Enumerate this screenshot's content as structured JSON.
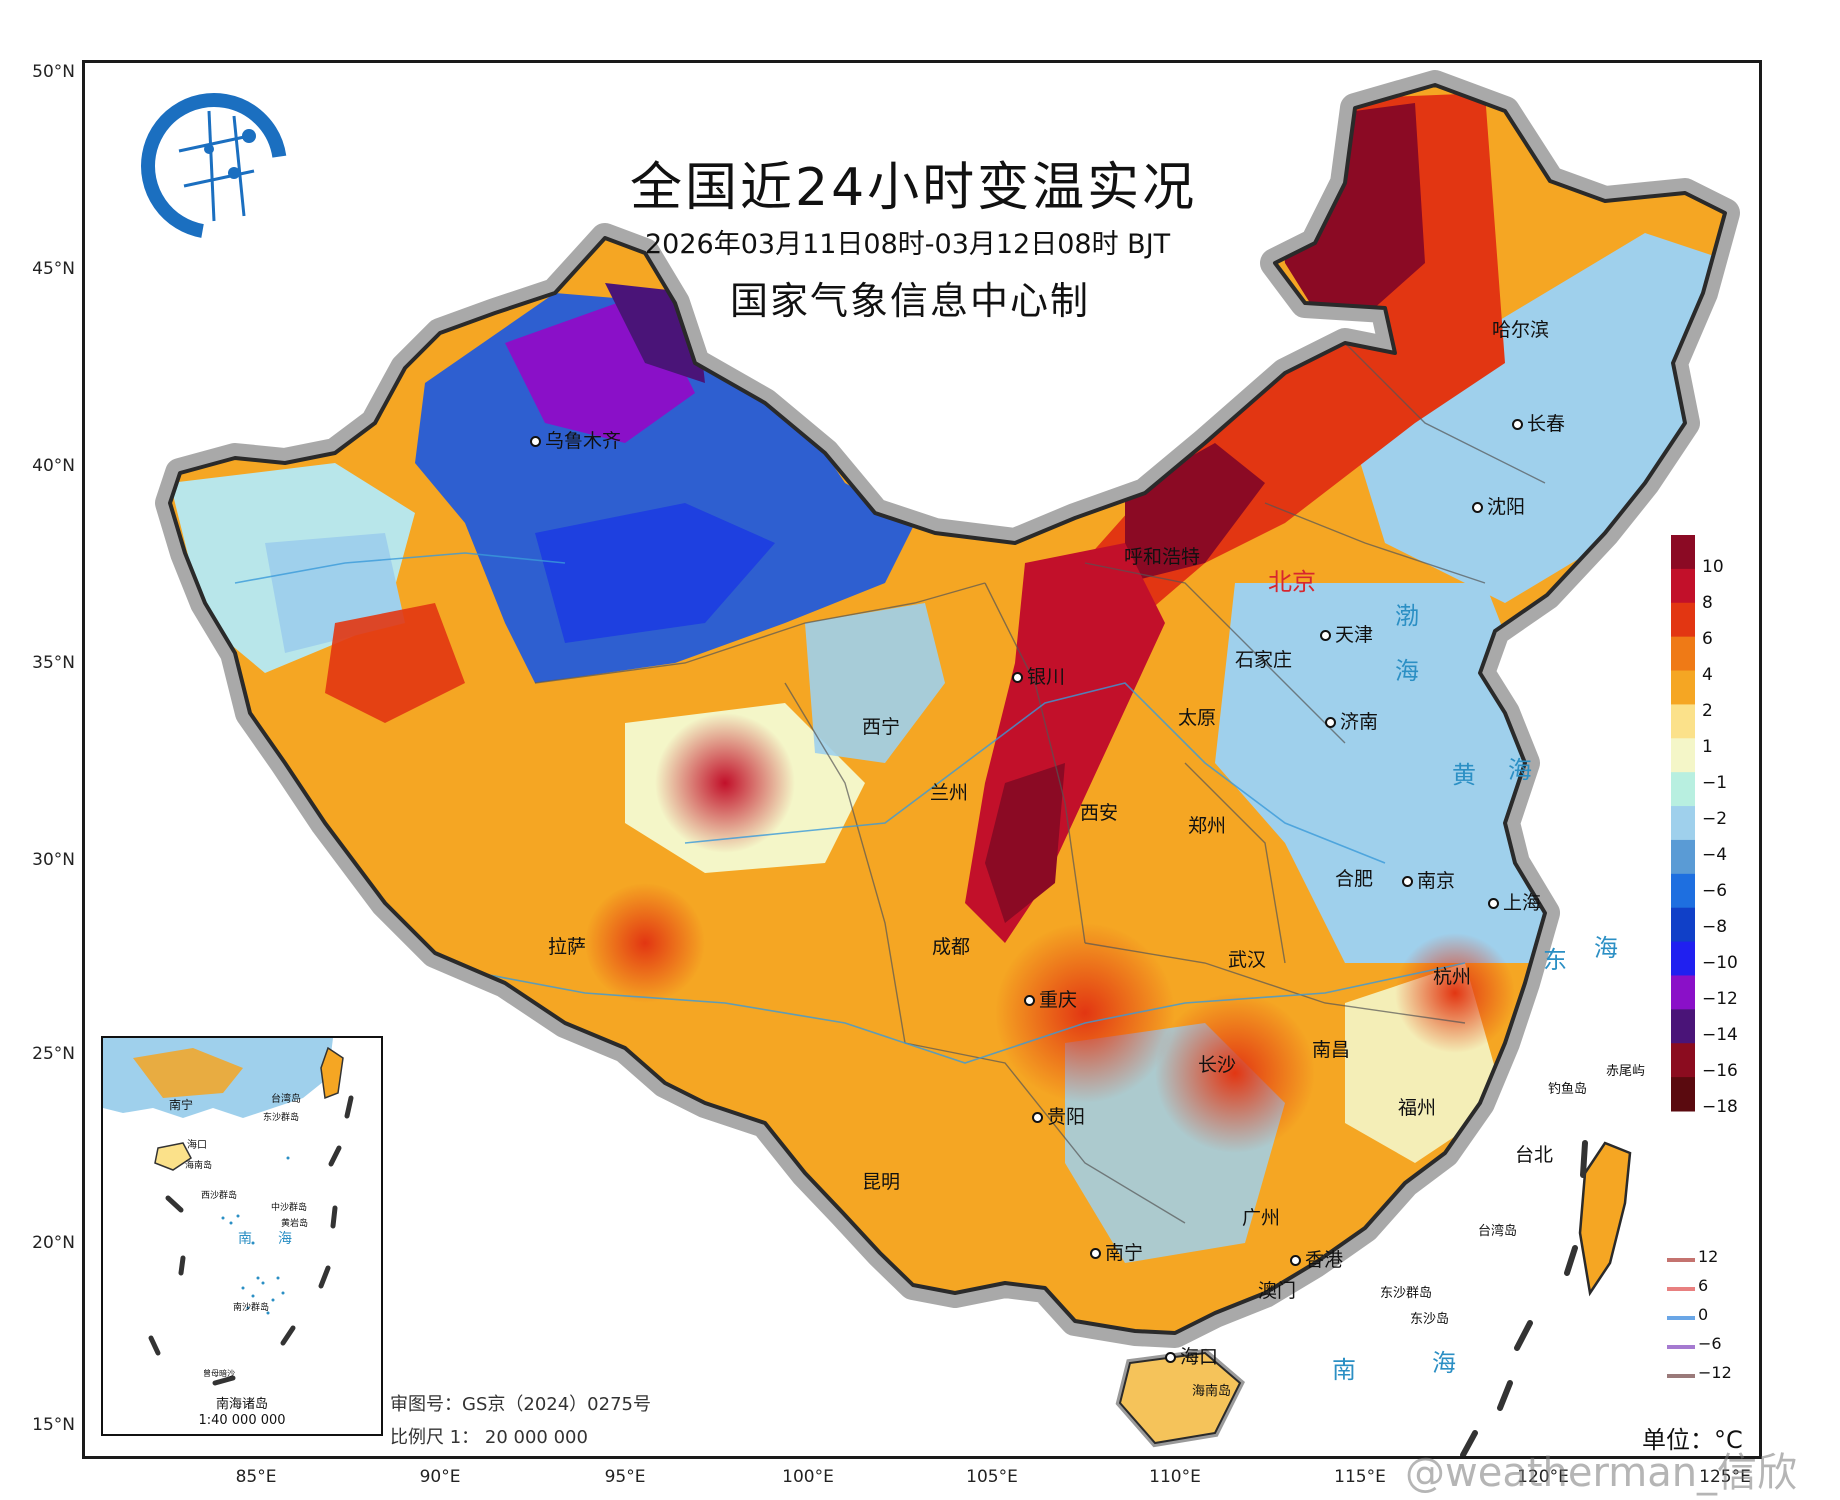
{
  "header": {
    "title": "全国近24小时变温实况",
    "subtitle": "2026年03月11日08时-03月12日08时 BJT",
    "issuer": "国家气象信息中心制"
  },
  "axes": {
    "lat_labels": [
      "50°N",
      "45°N",
      "40°N",
      "35°N",
      "30°N",
      "25°N",
      "20°N",
      "15°N"
    ],
    "lon_labels": [
      "85°E",
      "90°E",
      "95°E",
      "100°E",
      "105°E",
      "110°E",
      "115°E",
      "120°E",
      "125°E"
    ]
  },
  "cities": [
    "乌鲁木齐",
    "呼和浩特",
    "北京",
    "天津",
    "石家庄",
    "太原",
    "济南",
    "银川",
    "西宁",
    "兰州",
    "西安",
    "郑州",
    "合肥",
    "南京",
    "上海",
    "杭州",
    "武汉",
    "成都",
    "重庆",
    "拉萨",
    "长沙",
    "南昌",
    "福州",
    "贵阳",
    "昆明",
    "南宁",
    "广州",
    "香港",
    "澳门",
    "海口",
    "台北",
    "哈尔滨",
    "长春",
    "沈阳"
  ],
  "seas": [
    "渤",
    "海",
    "黄",
    "海",
    "东",
    "海",
    "南",
    "海"
  ],
  "small_labels": [
    "钓鱼岛",
    "赤尾屿",
    "台湾岛",
    "东沙群岛",
    "东沙岛",
    "海南岛"
  ],
  "legend": {
    "colors": [
      "#5a0a0f",
      "#8b0c1f",
      "#4a1478",
      "#8a10c8",
      "#2020f0",
      "#1040c8",
      "#1e6fe0",
      "#5a9bd5",
      "#9fd0ec",
      "#b8efe0",
      "#f4f6c8",
      "#fbe18a",
      "#f5a623",
      "#ef7a16",
      "#e23612",
      "#c2102a",
      "#8b0a24"
    ],
    "labels": [
      "10",
      "8",
      "6",
      "4",
      "2",
      "1",
      "−1",
      "−2",
      "−4",
      "−6",
      "−8",
      "−10",
      "−12",
      "−14",
      "−16",
      "−18"
    ]
  },
  "isoline_legend": [
    {
      "value": "12",
      "color": "#c4736f"
    },
    {
      "value": "6",
      "color": "#e88080"
    },
    {
      "value": "0",
      "color": "#6aa6e6"
    },
    {
      "value": "−6",
      "color": "#a57ad0"
    },
    {
      "value": "−12",
      "color": "#9a7a7a"
    }
  ],
  "inset": {
    "labels": [
      "南宁",
      "台湾岛",
      "海口",
      "海南岛",
      "东沙群岛",
      "西沙群岛",
      "中沙群岛",
      "黄岩岛",
      "南",
      "海",
      "南沙群岛",
      "曾母暗沙"
    ],
    "caption": "南海诸岛",
    "scale": "1:40 000 000"
  },
  "footer": {
    "approval": "审图号：GS京（2024）0275号",
    "scale": "比例尺  1： 20 000 000",
    "unit": "单位：°C",
    "watermark": "@weatherman_信欣"
  }
}
